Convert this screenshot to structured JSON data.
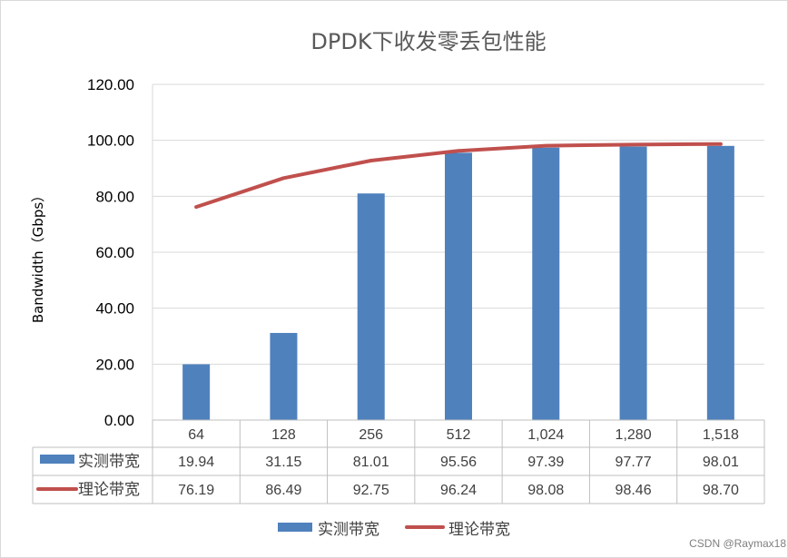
{
  "chart_data": {
    "type": "bar",
    "title": "DPDK下收发零丢包性能",
    "xlabel": "",
    "ylabel": "Bandwidth（Gbps）",
    "ylim": [
      0,
      120
    ],
    "yticks": [
      0,
      20,
      40,
      60,
      80,
      100,
      120
    ],
    "ytick_labels": [
      "0.00",
      "20.00",
      "40.00",
      "60.00",
      "80.00",
      "100.00",
      "120.00"
    ],
    "categories": [
      "64",
      "128",
      "256",
      "512",
      "1,024",
      "1,280",
      "1,518"
    ],
    "series": [
      {
        "name": "实测带宽",
        "kind": "bar",
        "color": "#4f81bd",
        "values": [
          19.94,
          31.15,
          81.01,
          95.56,
          97.39,
          97.77,
          98.01
        ],
        "labels": [
          "19.94",
          "31.15",
          "81.01",
          "95.56",
          "97.39",
          "97.77",
          "98.01"
        ]
      },
      {
        "name": "理论带宽",
        "kind": "line",
        "color": "#c0504d",
        "values": [
          76.19,
          86.49,
          92.75,
          96.24,
          98.08,
          98.46,
          98.7
        ],
        "labels": [
          "76.19",
          "86.49",
          "92.75",
          "96.24",
          "98.08",
          "98.46",
          "98.70"
        ]
      }
    ],
    "grid": true,
    "data_table": true,
    "legend": "bottom"
  },
  "watermark": "CSDN @Raymax18"
}
